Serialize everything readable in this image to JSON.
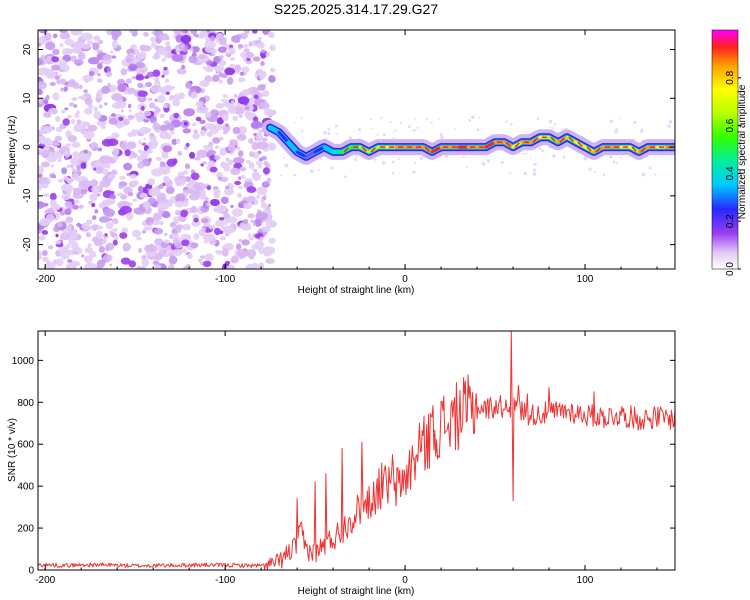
{
  "title": "S225.2025.314.17.29.G27",
  "chart_data": [
    {
      "type": "heatmap",
      "title": "S225.2025.314.17.29.G27",
      "xlabel": "Height of straight line (km)",
      "ylabel": "Frequency (Hz)",
      "xlim": [
        -204,
        150
      ],
      "ylim": [
        -25,
        24
      ],
      "x_ticks": [
        -200,
        -100,
        0,
        100
      ],
      "y_ticks": [
        -20,
        -10,
        0,
        10,
        20
      ],
      "noise_region_x": [
        -204,
        -78
      ],
      "signal_track": {
        "x": [
          -75,
          -70,
          -65,
          -60,
          -55,
          -50,
          -45,
          -40,
          -35,
          -30,
          -25,
          -20,
          -15,
          -10,
          -5,
          0,
          5,
          10,
          15,
          20,
          25,
          30,
          35,
          40,
          45,
          50,
          55,
          60,
          65,
          70,
          75,
          80,
          85,
          90,
          95,
          100,
          105,
          110,
          115,
          120,
          125,
          130,
          135,
          140,
          145,
          150
        ],
        "freq_hz": [
          4,
          3,
          1,
          -1,
          -2,
          -1,
          0,
          -1,
          -1,
          0,
          0,
          -1,
          0,
          0,
          0,
          0,
          0,
          0,
          -1,
          0,
          0,
          0,
          0,
          0,
          0,
          1,
          1,
          0,
          1,
          1,
          2,
          2,
          1,
          2,
          1,
          0,
          -1,
          0,
          0,
          0,
          0,
          -1,
          0,
          0,
          0,
          0
        ],
        "amplitude": [
          0.35,
          0.25,
          0.4,
          0.3,
          0.2,
          0.3,
          0.35,
          0.45,
          0.6,
          0.55,
          0.65,
          0.7,
          0.72,
          0.8,
          0.85,
          0.9,
          0.88,
          0.92,
          0.95,
          0.9,
          0.85,
          0.95,
          0.92,
          0.9,
          0.95,
          0.85,
          0.9,
          0.8,
          0.88,
          0.85,
          0.75,
          0.65,
          0.85,
          0.7,
          0.75,
          0.8,
          0.85,
          0.9,
          0.85,
          0.8,
          0.82,
          0.88,
          0.85,
          0.8,
          0.85,
          0.8
        ]
      },
      "colorbar": {
        "label": "Normalized spectral amplitude",
        "range": [
          0.0,
          1.0
        ],
        "ticks": [
          0.0,
          0.2,
          0.4,
          0.6,
          0.8
        ]
      }
    },
    {
      "type": "line",
      "xlabel": "Height of straight line (km)",
      "ylabel": "SNR (10 * v/v)",
      "xlim": [
        -204,
        150
      ],
      "ylim": [
        0,
        1140
      ],
      "x_ticks": [
        -200,
        -100,
        0,
        100
      ],
      "y_ticks": [
        0,
        200,
        400,
        600,
        800,
        1000
      ],
      "series": [
        {
          "name": "SNR",
          "color": "#ee3333",
          "x": [
            -204,
            -190,
            -170,
            -150,
            -130,
            -110,
            -90,
            -80,
            -75,
            -70,
            -65,
            -60,
            -58,
            -55,
            -50,
            -45,
            -40,
            -35,
            -30,
            -25,
            -20,
            -15,
            -10,
            -5,
            0,
            5,
            10,
            15,
            20,
            25,
            30,
            35,
            40,
            45,
            50,
            55,
            59,
            60,
            61,
            62,
            65,
            70,
            80,
            90,
            100,
            110,
            120,
            130,
            140,
            150
          ],
          "y": [
            25,
            22,
            25,
            20,
            22,
            24,
            22,
            20,
            25,
            40,
            80,
            120,
            180,
            100,
            80,
            120,
            150,
            190,
            250,
            290,
            330,
            380,
            410,
            390,
            440,
            520,
            590,
            650,
            690,
            710,
            740,
            760,
            770,
            770,
            780,
            780,
            780,
            780,
            760,
            790,
            760,
            740,
            750,
            760,
            740,
            730,
            740,
            720,
            730,
            720
          ],
          "spikes": [
            {
              "x": -60,
              "y": 340
            },
            {
              "x": -50,
              "y": 420
            },
            {
              "x": -44,
              "y": 460
            },
            {
              "x": -35,
              "y": 580
            },
            {
              "x": -24,
              "y": 610
            },
            {
              "x": -13,
              "y": 510
            },
            {
              "x": -7,
              "y": 550
            },
            {
              "x": 8,
              "y": 700
            },
            {
              "x": 15,
              "y": 730
            },
            {
              "x": 59,
              "y": 1140
            },
            {
              "x": 60,
              "y": 330
            },
            {
              "x": 63,
              "y": 880
            },
            {
              "x": 68,
              "y": 840
            },
            {
              "x": 80,
              "y": 870
            },
            {
              "x": 105,
              "y": 850
            }
          ]
        }
      ]
    }
  ]
}
